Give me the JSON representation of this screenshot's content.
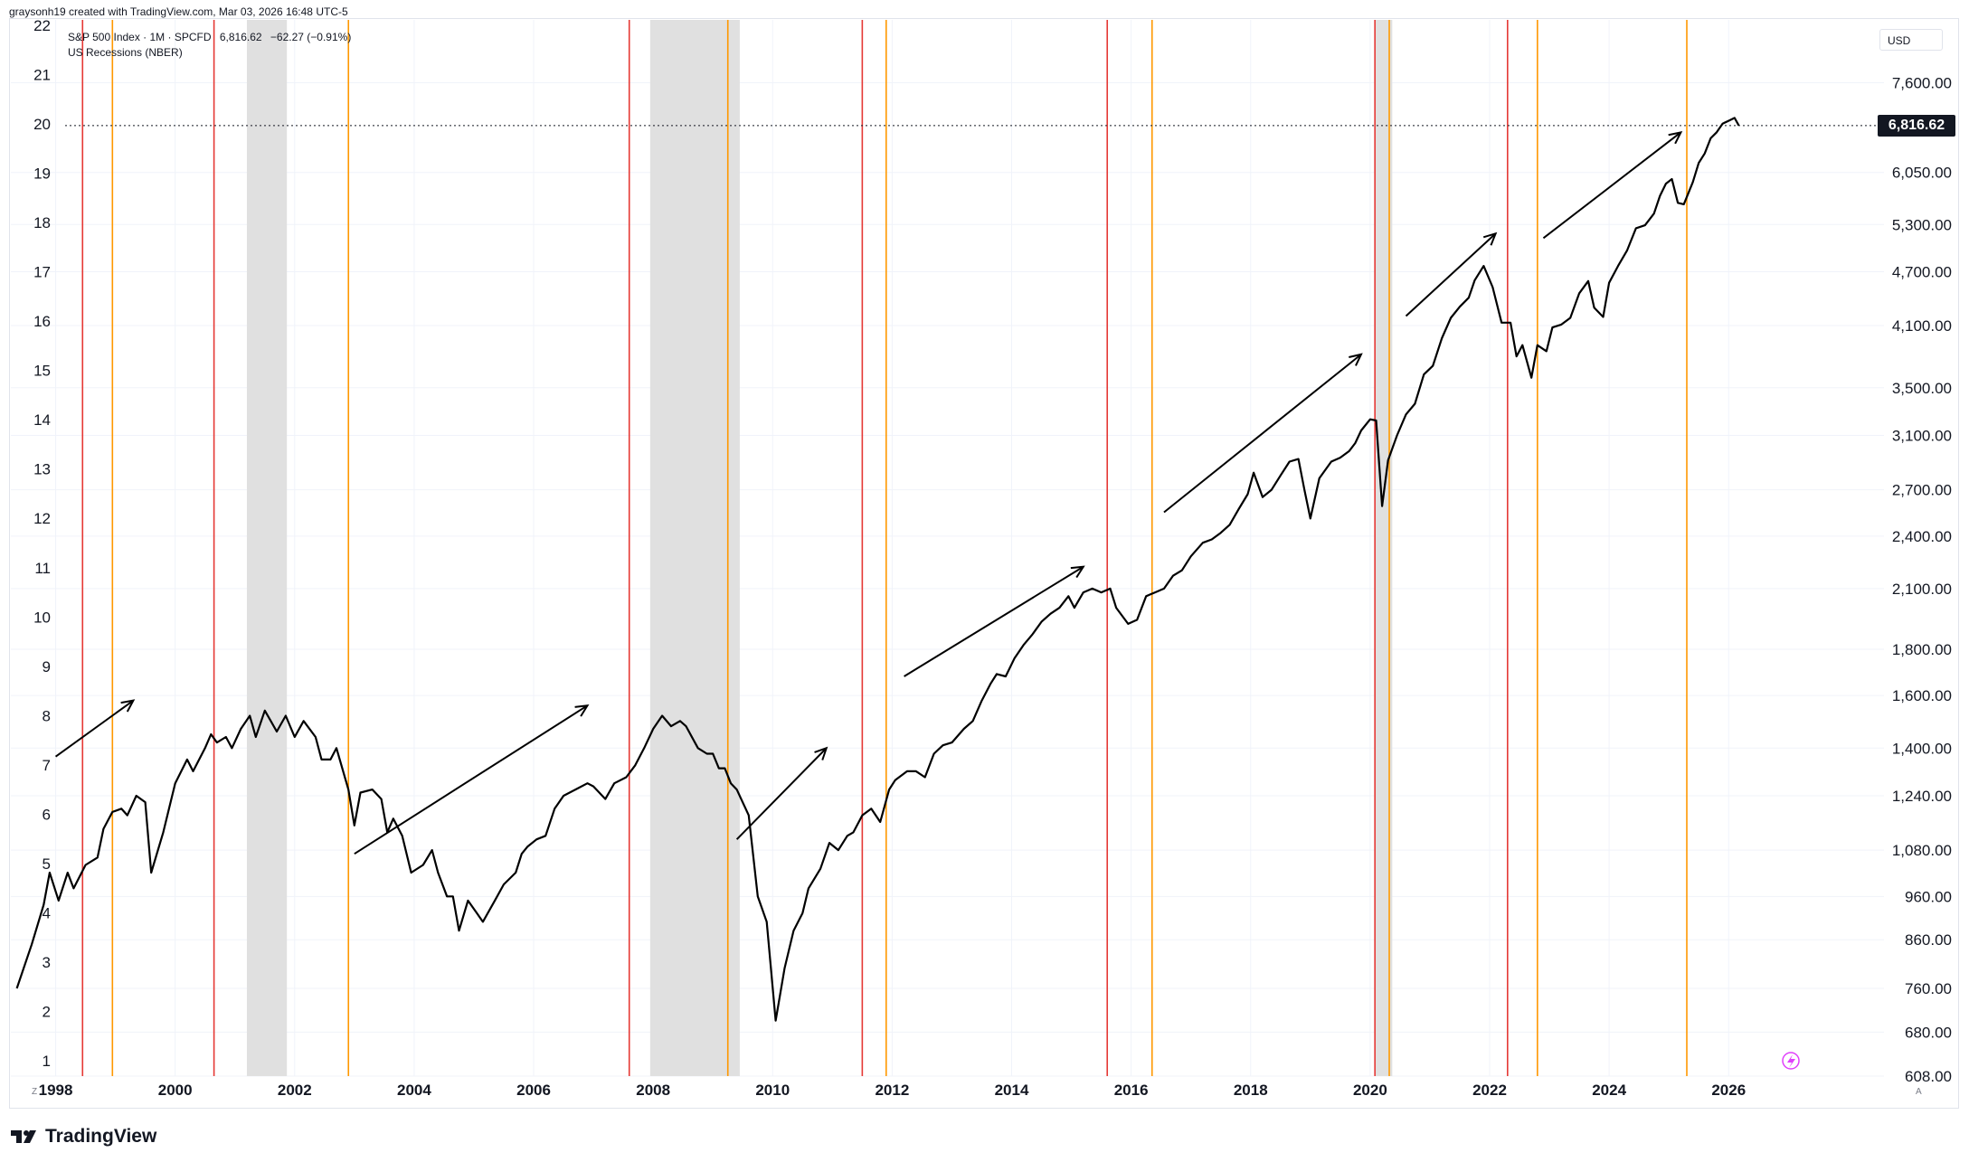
{
  "header": {
    "credit": "graysonh19 created with TradingView.com, Mar 03, 2026 16:48 UTC-5"
  },
  "legend": {
    "symbol": "S&P 500 Index · 1M · SPCFD",
    "last": "6,816.62",
    "change": "−62.27 (−0.91%)",
    "study": "US Recessions (NBER)"
  },
  "price_badge": "6,816.62",
  "currency": "USD",
  "logo": {
    "text": "TradingView"
  },
  "corner_left": "Z",
  "corner_right": "A",
  "colors": {
    "line": "#000000",
    "red_marker": "#e53935",
    "orange_marker": "#ff9800",
    "recession": "#e0e0e0",
    "grid": "#f0f3fa",
    "badge_bg": "#131722",
    "flash_icon": "#e040fb"
  },
  "chart_data": {
    "type": "line",
    "title": "",
    "xlabel": "",
    "ylabel": "",
    "x_ticks": [
      "1998",
      "2000",
      "2002",
      "2004",
      "2006",
      "2008",
      "2010",
      "2012",
      "2014",
      "2016",
      "2018",
      "2020",
      "2022",
      "2024",
      "2026"
    ],
    "left_ticks": [
      "1",
      "2",
      "3",
      "4",
      "5",
      "6",
      "7",
      "8",
      "9",
      "10",
      "11",
      "12",
      "13",
      "14",
      "15",
      "16",
      "17",
      "18",
      "19",
      "20",
      "21",
      "22"
    ],
    "right_ticks": [
      "608.00",
      "680.00",
      "760.00",
      "860.00",
      "960.00",
      "1,080.00",
      "1,240.00",
      "1,400.00",
      "1,600.00",
      "1,800.00",
      "2,100.00",
      "2,400.00",
      "2,700.00",
      "3,100.00",
      "3,500.00",
      "4,100.00",
      "4,700.00",
      "5,300.00",
      "6,050.00",
      "7,600.00"
    ],
    "xlim": [
      1997.25,
      2028.6
    ],
    "ylim_log": [
      608,
      8400
    ],
    "scale": "log",
    "last_price": 6816.62,
    "series": [
      {
        "name": "",
        "points": [
          [
            1997.35,
            760
          ],
          [
            1997.6,
            850
          ],
          [
            1997.8,
            940
          ],
          [
            1997.9,
            1020
          ],
          [
            1998.05,
            950
          ],
          [
            1998.2,
            1020
          ],
          [
            1998.3,
            980
          ],
          [
            1998.5,
            1040
          ],
          [
            1998.7,
            1060
          ],
          [
            1998.8,
            1140
          ],
          [
            1998.95,
            1190
          ],
          [
            1999.1,
            1200
          ],
          [
            1999.2,
            1180
          ],
          [
            1999.35,
            1240
          ],
          [
            1999.5,
            1220
          ],
          [
            1999.6,
            1020
          ],
          [
            1999.8,
            1130
          ],
          [
            2000.0,
            1280
          ],
          [
            2000.2,
            1360
          ],
          [
            2000.3,
            1320
          ],
          [
            2000.5,
            1400
          ],
          [
            2000.6,
            1450
          ],
          [
            2000.7,
            1420
          ],
          [
            2000.85,
            1440
          ],
          [
            2000.95,
            1400
          ],
          [
            2001.1,
            1470
          ],
          [
            2001.25,
            1520
          ],
          [
            2001.35,
            1440
          ],
          [
            2001.5,
            1540
          ],
          [
            2001.6,
            1500
          ],
          [
            2001.7,
            1460
          ],
          [
            2001.85,
            1520
          ],
          [
            2002.0,
            1440
          ],
          [
            2002.15,
            1500
          ],
          [
            2002.35,
            1440
          ],
          [
            2002.45,
            1360
          ],
          [
            2002.6,
            1360
          ],
          [
            2002.7,
            1400
          ],
          [
            2002.9,
            1260
          ],
          [
            2003.0,
            1150
          ],
          [
            2003.1,
            1250
          ],
          [
            2003.3,
            1260
          ],
          [
            2003.45,
            1230
          ],
          [
            2003.55,
            1130
          ],
          [
            2003.65,
            1170
          ],
          [
            2003.8,
            1120
          ],
          [
            2003.95,
            1020
          ],
          [
            2004.15,
            1040
          ],
          [
            2004.3,
            1080
          ],
          [
            2004.4,
            1020
          ],
          [
            2004.55,
            960
          ],
          [
            2004.65,
            960
          ],
          [
            2004.75,
            880
          ],
          [
            2004.9,
            950
          ],
          [
            2005.05,
            920
          ],
          [
            2005.15,
            900
          ],
          [
            2005.35,
            950
          ],
          [
            2005.5,
            990
          ],
          [
            2005.7,
            1020
          ],
          [
            2005.8,
            1070
          ],
          [
            2005.9,
            1090
          ],
          [
            2006.05,
            1110
          ],
          [
            2006.2,
            1120
          ],
          [
            2006.35,
            1200
          ],
          [
            2006.5,
            1240
          ],
          [
            2006.7,
            1260
          ],
          [
            2006.9,
            1280
          ],
          [
            2007.0,
            1270
          ],
          [
            2007.2,
            1230
          ],
          [
            2007.35,
            1280
          ],
          [
            2007.55,
            1300
          ],
          [
            2007.7,
            1340
          ],
          [
            2007.85,
            1400
          ],
          [
            2008.0,
            1470
          ],
          [
            2008.15,
            1520
          ],
          [
            2008.3,
            1480
          ],
          [
            2008.45,
            1500
          ],
          [
            2008.55,
            1480
          ],
          [
            2008.75,
            1400
          ],
          [
            2008.9,
            1380
          ],
          [
            2009.0,
            1380
          ],
          [
            2009.1,
            1330
          ],
          [
            2009.2,
            1330
          ],
          [
            2009.3,
            1280
          ],
          [
            2009.4,
            1260
          ],
          [
            2009.6,
            1180
          ],
          [
            2009.75,
            960
          ],
          [
            2009.9,
            900
          ],
          [
            2010.05,
            700
          ],
          [
            2010.2,
            800
          ],
          [
            2010.35,
            880
          ],
          [
            2010.5,
            920
          ],
          [
            2010.6,
            980
          ],
          [
            2010.8,
            1030
          ],
          [
            2010.95,
            1100
          ],
          [
            2011.1,
            1080
          ],
          [
            2011.25,
            1120
          ],
          [
            2011.35,
            1130
          ],
          [
            2011.5,
            1180
          ],
          [
            2011.65,
            1200
          ],
          [
            2011.8,
            1160
          ],
          [
            2011.95,
            1260
          ],
          [
            2012.05,
            1290
          ],
          [
            2012.25,
            1320
          ],
          [
            2012.4,
            1320
          ],
          [
            2012.55,
            1300
          ],
          [
            2012.7,
            1380
          ],
          [
            2012.85,
            1410
          ],
          [
            2013.0,
            1420
          ],
          [
            2013.2,
            1470
          ],
          [
            2013.35,
            1500
          ],
          [
            2013.5,
            1580
          ],
          [
            2013.65,
            1650
          ],
          [
            2013.75,
            1690
          ],
          [
            2013.9,
            1680
          ],
          [
            2014.05,
            1760
          ],
          [
            2014.2,
            1820
          ],
          [
            2014.35,
            1870
          ],
          [
            2014.5,
            1930
          ],
          [
            2014.65,
            1970
          ],
          [
            2014.8,
            2000
          ],
          [
            2014.95,
            2060
          ],
          [
            2015.05,
            2000
          ],
          [
            2015.2,
            2080
          ],
          [
            2015.35,
            2100
          ],
          [
            2015.5,
            2080
          ],
          [
            2015.65,
            2100
          ],
          [
            2015.75,
            2000
          ],
          [
            2015.95,
            1920
          ],
          [
            2016.1,
            1940
          ],
          [
            2016.25,
            2060
          ],
          [
            2016.4,
            2080
          ],
          [
            2016.55,
            2100
          ],
          [
            2016.7,
            2170
          ],
          [
            2016.85,
            2200
          ],
          [
            2017.0,
            2280
          ],
          [
            2017.2,
            2360
          ],
          [
            2017.35,
            2380
          ],
          [
            2017.5,
            2420
          ],
          [
            2017.65,
            2470
          ],
          [
            2017.8,
            2570
          ],
          [
            2017.95,
            2670
          ],
          [
            2018.05,
            2820
          ],
          [
            2018.2,
            2650
          ],
          [
            2018.35,
            2700
          ],
          [
            2018.5,
            2800
          ],
          [
            2018.65,
            2900
          ],
          [
            2018.8,
            2920
          ],
          [
            2018.9,
            2700
          ],
          [
            2019.0,
            2510
          ],
          [
            2019.15,
            2780
          ],
          [
            2019.35,
            2900
          ],
          [
            2019.5,
            2930
          ],
          [
            2019.65,
            2980
          ],
          [
            2019.75,
            3040
          ],
          [
            2019.85,
            3140
          ],
          [
            2020.0,
            3230
          ],
          [
            2020.1,
            3220
          ],
          [
            2020.2,
            2590
          ],
          [
            2020.3,
            2910
          ],
          [
            2020.45,
            3100
          ],
          [
            2020.6,
            3270
          ],
          [
            2020.75,
            3360
          ],
          [
            2020.9,
            3620
          ],
          [
            2021.05,
            3700
          ],
          [
            2021.2,
            3970
          ],
          [
            2021.35,
            4180
          ],
          [
            2021.5,
            4300
          ],
          [
            2021.65,
            4400
          ],
          [
            2021.75,
            4600
          ],
          [
            2021.9,
            4770
          ],
          [
            2022.05,
            4520
          ],
          [
            2022.2,
            4130
          ],
          [
            2022.35,
            4130
          ],
          [
            2022.45,
            3790
          ],
          [
            2022.55,
            3900
          ],
          [
            2022.7,
            3590
          ],
          [
            2022.8,
            3900
          ],
          [
            2022.95,
            3840
          ],
          [
            2023.05,
            4080
          ],
          [
            2023.2,
            4110
          ],
          [
            2023.35,
            4180
          ],
          [
            2023.5,
            4450
          ],
          [
            2023.65,
            4590
          ],
          [
            2023.75,
            4290
          ],
          [
            2023.9,
            4190
          ],
          [
            2024.0,
            4570
          ],
          [
            2024.15,
            4770
          ],
          [
            2024.3,
            4960
          ],
          [
            2024.45,
            5250
          ],
          [
            2024.6,
            5290
          ],
          [
            2024.75,
            5450
          ],
          [
            2024.85,
            5700
          ],
          [
            2024.95,
            5880
          ],
          [
            2025.05,
            5950
          ],
          [
            2025.15,
            5600
          ],
          [
            2025.25,
            5580
          ],
          [
            2025.4,
            5900
          ],
          [
            2025.5,
            6200
          ],
          [
            2025.6,
            6350
          ],
          [
            2025.7,
            6600
          ],
          [
            2025.8,
            6700
          ],
          [
            2025.9,
            6850
          ],
          [
            2026.0,
            6900
          ],
          [
            2026.1,
            6950
          ],
          [
            2026.17,
            6816.62
          ]
        ]
      }
    ],
    "recession_bands": [
      [
        2001.2,
        2001.87
      ],
      [
        2007.95,
        2009.45
      ],
      [
        2020.08,
        2020.37
      ]
    ],
    "red_lines": [
      1998.45,
      2000.65,
      2007.6,
      2011.5,
      2015.6,
      2020.08,
      2022.3
    ],
    "orange_lines": [
      1998.95,
      2002.9,
      2009.25,
      2011.9,
      2016.35,
      2020.32,
      2022.8,
      2025.3
    ],
    "arrows": [
      {
        "from": [
          1998.0,
          1370
        ],
        "to": [
          1999.3,
          1580
        ]
      },
      {
        "from": [
          2003.0,
          1070
        ],
        "to": [
          2006.9,
          1560
        ]
      },
      {
        "from": [
          2009.4,
          1110
        ],
        "to": [
          2010.9,
          1400
        ]
      },
      {
        "from": [
          2012.2,
          1680
        ],
        "to": [
          2015.2,
          2220
        ]
      },
      {
        "from": [
          2016.55,
          2550
        ],
        "to": [
          2019.85,
          3810
        ]
      },
      {
        "from": [
          2020.6,
          4200
        ],
        "to": [
          2022.1,
          5180
        ]
      },
      {
        "from": [
          2022.9,
          5120
        ],
        "to": [
          2025.2,
          6700
        ]
      }
    ]
  }
}
